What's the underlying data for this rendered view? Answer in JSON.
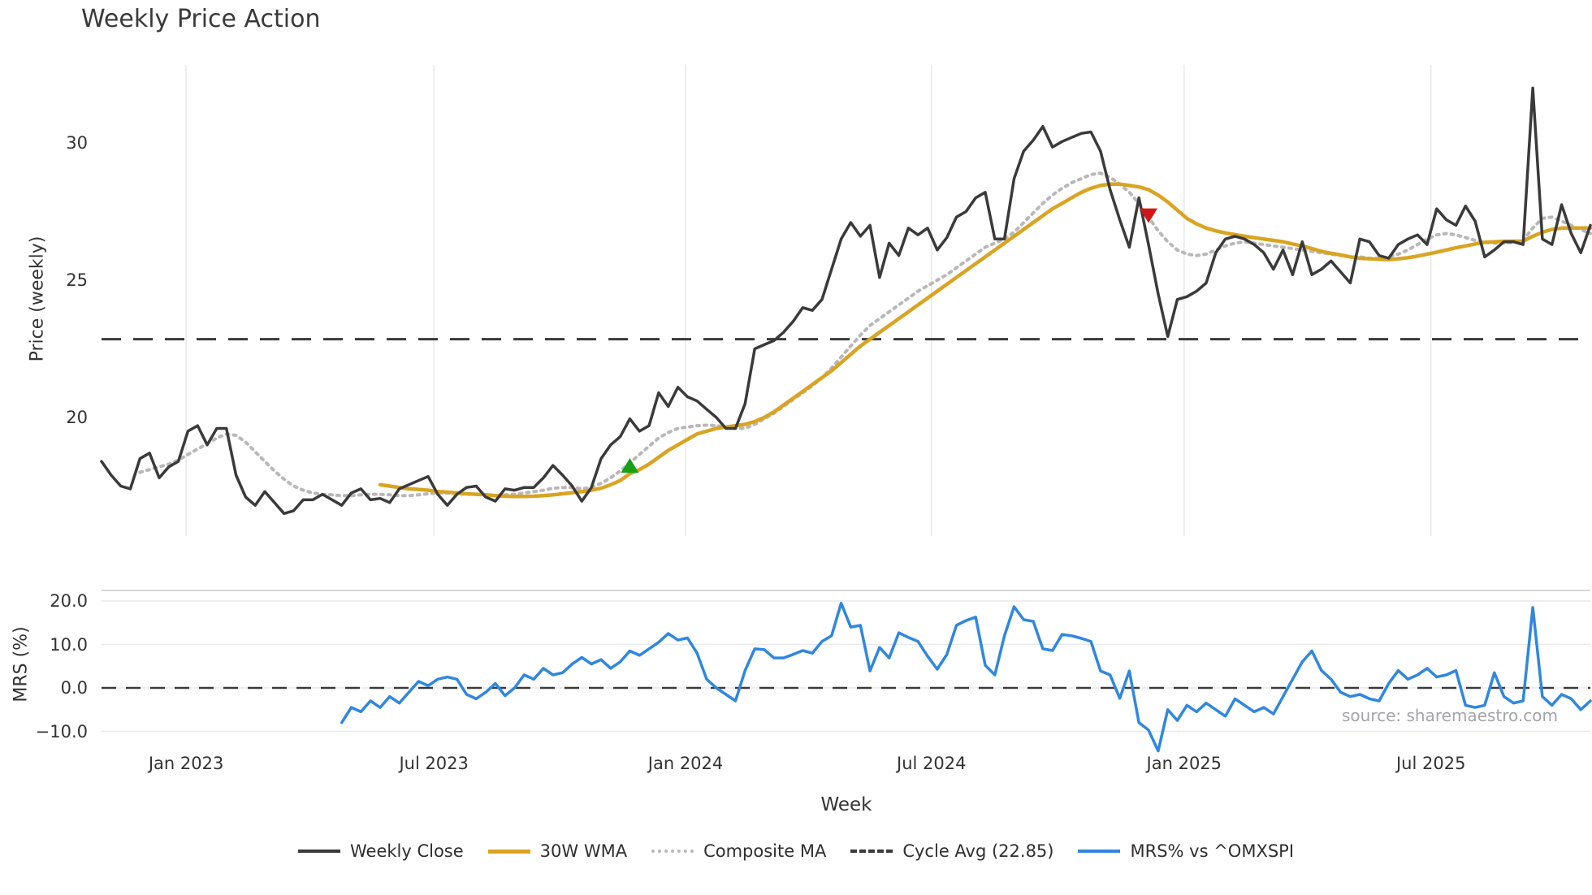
{
  "title": "Weekly Price Action",
  "watermark": "source: sharemaestro.com",
  "colors": {
    "weekly_close": "#3a3a3a",
    "wma_30w": "#d9a421",
    "composite_ma": "#b8b8b8",
    "cycle_avg": "#3a3a3a",
    "mrs_line": "#2f87e0",
    "buy_marker": "#16a016",
    "sell_marker": "#d01616",
    "grid": "#e9e9ec",
    "spine": "#c9c9c9",
    "tick_text": "#333333"
  },
  "chart_data": {
    "type": "line",
    "title": "Weekly Price Action",
    "xlabel": "Week",
    "x_axis": {
      "label": "Week",
      "tick_labels": [
        "Jan 2023",
        "Jul 2023",
        "Jan 2024",
        "Jul 2024",
        "Jan 2025",
        "Jul 2025"
      ],
      "tick_weeks": [
        8.8,
        34.6,
        60.8,
        86.4,
        112.7,
        138.4
      ]
    },
    "price_panel": {
      "ylabel": "Price (weekly)",
      "ytick_values": [
        30,
        25,
        20
      ],
      "ytick_labels": [
        "30",
        "25",
        "20"
      ],
      "ylim": [
        15.7,
        32.8
      ]
    },
    "mrs_panel": {
      "ylabel": "MRS (%)",
      "ytick_values": [
        20,
        10,
        0,
        -10
      ],
      "ytick_labels": [
        "20.0",
        "10.0",
        "0.0",
        "−10.0"
      ],
      "ylim": [
        -15.5,
        22.4
      ]
    },
    "cycle_avg_value": 22.85,
    "series": [
      {
        "name": "Weekly Close",
        "panel": "price",
        "style": "solid",
        "color": "#3a3a3a",
        "width": 3.5,
        "start_week": 0,
        "values": [
          18.4,
          17.9,
          17.5,
          17.4,
          18.5,
          18.7,
          17.8,
          18.2,
          18.4,
          19.5,
          19.7,
          19.0,
          19.6,
          19.6,
          17.9,
          17.1,
          16.8,
          17.3,
          16.9,
          16.5,
          16.6,
          17.0,
          17.0,
          17.2,
          17.0,
          16.8,
          17.25,
          17.4,
          17.0,
          17.05,
          16.9,
          17.4,
          17.55,
          17.7,
          17.85,
          17.2,
          16.8,
          17.2,
          17.45,
          17.5,
          17.1,
          16.95,
          17.4,
          17.35,
          17.45,
          17.45,
          17.8,
          18.25,
          17.9,
          17.5,
          16.95,
          17.45,
          18.5,
          19.0,
          19.3,
          19.95,
          19.5,
          19.7,
          20.9,
          20.4,
          21.1,
          20.75,
          20.6,
          20.3,
          20.0,
          19.6,
          19.6,
          20.5,
          22.5,
          22.65,
          22.8,
          23.1,
          23.5,
          24.0,
          23.9,
          24.3,
          25.4,
          26.5,
          27.1,
          26.6,
          27.0,
          25.1,
          26.35,
          25.9,
          26.9,
          26.65,
          26.9,
          26.1,
          26.55,
          27.3,
          27.5,
          28.0,
          28.2,
          26.5,
          26.5,
          28.7,
          29.7,
          30.1,
          30.6,
          29.85,
          30.05,
          30.2,
          30.35,
          30.4,
          29.7,
          28.3,
          27.2,
          26.2,
          28.0,
          26.3,
          24.5,
          22.95,
          24.3,
          24.4,
          24.6,
          24.9,
          26.0,
          26.5,
          26.6,
          26.5,
          26.3,
          26.0,
          25.4,
          26.1,
          25.2,
          26.4,
          25.2,
          25.4,
          25.7,
          25.3,
          24.9,
          26.5,
          26.4,
          25.9,
          25.8,
          26.3,
          26.5,
          26.65,
          26.3,
          27.6,
          27.2,
          27.0,
          27.7,
          27.15,
          25.85,
          26.1,
          26.4,
          26.4,
          26.3,
          32.0,
          26.5,
          26.3,
          27.75,
          26.7,
          26.0,
          27.0
        ]
      },
      {
        "name": "30W WMA",
        "panel": "price",
        "style": "solid",
        "color": "#d9a421",
        "width": 4.5,
        "start_week": 29,
        "values": [
          17.55,
          17.5,
          17.45,
          17.4,
          17.38,
          17.35,
          17.3,
          17.28,
          17.25,
          17.22,
          17.2,
          17.18,
          17.15,
          17.13,
          17.12,
          17.12,
          17.13,
          17.15,
          17.18,
          17.22,
          17.26,
          17.3,
          17.35,
          17.42,
          17.55,
          17.7,
          17.95,
          18.1,
          18.3,
          18.55,
          18.8,
          19.0,
          19.2,
          19.4,
          19.5,
          19.6,
          19.65,
          19.7,
          19.75,
          19.85,
          20.0,
          20.2,
          20.45,
          20.7,
          20.95,
          21.2,
          21.45,
          21.7,
          22.0,
          22.3,
          22.6,
          22.85,
          23.1,
          23.35,
          23.6,
          23.85,
          24.1,
          24.35,
          24.6,
          24.85,
          25.1,
          25.35,
          25.6,
          25.85,
          26.1,
          26.35,
          26.6,
          26.85,
          27.1,
          27.35,
          27.6,
          27.8,
          28.0,
          28.2,
          28.35,
          28.45,
          28.5,
          28.5,
          28.45,
          28.4,
          28.3,
          28.1,
          27.85,
          27.55,
          27.25,
          27.05,
          26.9,
          26.8,
          26.72,
          26.66,
          26.6,
          26.55,
          26.5,
          26.45,
          26.4,
          26.32,
          26.25,
          26.15,
          26.05,
          25.98,
          25.92,
          25.85,
          25.8,
          25.78,
          25.76,
          25.75,
          25.78,
          25.82,
          25.88,
          25.95,
          26.02,
          26.1,
          26.18,
          26.25,
          26.32,
          26.38,
          26.4,
          26.42,
          26.42,
          26.42,
          26.6,
          26.75,
          26.85,
          26.9,
          26.9,
          26.9,
          26.9
        ]
      },
      {
        "name": "Composite MA",
        "panel": "price",
        "style": "dotted",
        "color": "#b8b8b8",
        "width": 4,
        "start_week": 4,
        "values": [
          18.0,
          18.1,
          18.2,
          18.3,
          18.45,
          18.65,
          18.85,
          19.05,
          19.25,
          19.4,
          19.35,
          19.1,
          18.75,
          18.4,
          18.05,
          17.75,
          17.5,
          17.35,
          17.25,
          17.2,
          17.18,
          17.15,
          17.15,
          17.18,
          17.2,
          17.2,
          17.18,
          17.15,
          17.15,
          17.18,
          17.22,
          17.25,
          17.25,
          17.22,
          17.2,
          17.2,
          17.18,
          17.15,
          17.18,
          17.2,
          17.25,
          17.3,
          17.35,
          17.42,
          17.45,
          17.45,
          17.4,
          17.45,
          17.6,
          17.8,
          18.05,
          18.35,
          18.65,
          18.95,
          19.25,
          19.45,
          19.6,
          19.65,
          19.7,
          19.72,
          19.7,
          19.65,
          19.6,
          19.6,
          19.75,
          19.95,
          20.15,
          20.4,
          20.65,
          20.9,
          21.15,
          21.45,
          21.8,
          22.2,
          22.6,
          23.0,
          23.35,
          23.6,
          23.85,
          24.1,
          24.35,
          24.6,
          24.8,
          25.0,
          25.2,
          25.45,
          25.7,
          25.95,
          26.2,
          26.35,
          26.5,
          26.75,
          27.1,
          27.45,
          27.8,
          28.1,
          28.35,
          28.55,
          28.7,
          28.85,
          28.9,
          28.75,
          28.5,
          28.2,
          27.8,
          27.3,
          26.8,
          26.4,
          26.1,
          25.95,
          25.9,
          25.95,
          26.1,
          26.25,
          26.35,
          26.4,
          26.35,
          26.3,
          26.25,
          26.2,
          26.15,
          26.1,
          26.05,
          26.0,
          25.95,
          25.9,
          25.85,
          25.85,
          25.8,
          25.8,
          25.85,
          25.95,
          26.1,
          26.3,
          26.5,
          26.65,
          26.7,
          26.65,
          26.55,
          26.45,
          26.38,
          26.35,
          26.35,
          26.38,
          26.45,
          26.9,
          27.25,
          27.3,
          27.15,
          27.0,
          26.85,
          26.7
        ]
      },
      {
        "name": "MRS% vs ^OMXSPI",
        "panel": "mrs",
        "style": "solid",
        "color": "#2f87e0",
        "width": 3.5,
        "start_week": 25,
        "values": [
          -8.0,
          -4.5,
          -5.5,
          -3.0,
          -4.5,
          -2.0,
          -3.5,
          -1.0,
          1.5,
          0.5,
          2.0,
          2.5,
          2.0,
          -1.5,
          -2.5,
          -1.0,
          1.0,
          -1.8,
          0.0,
          3.0,
          2.0,
          4.5,
          3.0,
          3.5,
          5.5,
          7.0,
          5.5,
          6.5,
          4.5,
          6.0,
          8.5,
          7.5,
          9.0,
          10.5,
          12.5,
          11.0,
          11.5,
          8.0,
          2.0,
          0.0,
          -1.5,
          -3.0,
          4.0,
          9.0,
          8.8,
          6.9,
          6.9,
          7.7,
          8.6,
          8.0,
          10.7,
          12.0,
          19.5,
          14.0,
          14.4,
          3.9,
          9.3,
          6.9,
          12.7,
          11.6,
          10.7,
          7.3,
          4.3,
          7.7,
          14.4,
          15.5,
          16.3,
          5.2,
          3.0,
          12.0,
          18.7,
          15.7,
          15.3,
          9.0,
          8.6,
          12.3,
          12.0,
          11.4,
          10.7,
          3.9,
          3.0,
          -2.4,
          3.9,
          -8.0,
          -9.7,
          -14.5,
          -5.0,
          -7.5,
          -4.0,
          -5.5,
          -3.5,
          -5.0,
          -6.5,
          -2.5,
          -4.0,
          -5.5,
          -4.5,
          -6.0,
          -2.0,
          2.0,
          6.0,
          8.5,
          4.0,
          2.0,
          -1.0,
          -2.0,
          -1.5,
          -2.5,
          -3.0,
          1.0,
          4.0,
          2.0,
          3.0,
          4.5,
          2.5,
          3.0,
          4.0,
          -4.0,
          -4.5,
          -4.0,
          3.5,
          -2.0,
          -3.5,
          -3.0,
          18.5,
          -2.0,
          -4.0,
          -1.5,
          -2.5,
          -5.0,
          -3.0
        ]
      }
    ],
    "markers": [
      {
        "type": "buy-signal",
        "shape": "triangle-up",
        "color": "#16a016",
        "week": 55,
        "price": 18.25
      },
      {
        "type": "sell-signal",
        "shape": "triangle-down",
        "color": "#d01616",
        "week": 109,
        "price": 27.35
      }
    ]
  },
  "legend": {
    "items": [
      {
        "label": "Weekly Close",
        "swatch": "solid-dark"
      },
      {
        "label": "30W WMA",
        "swatch": "solid-gold"
      },
      {
        "label": "Composite MA",
        "swatch": "dotted"
      },
      {
        "label": "Cycle Avg (22.85)",
        "swatch": "dashed"
      },
      {
        "label": "MRS% vs ^OMXSPI",
        "swatch": "solid-blue"
      }
    ]
  }
}
